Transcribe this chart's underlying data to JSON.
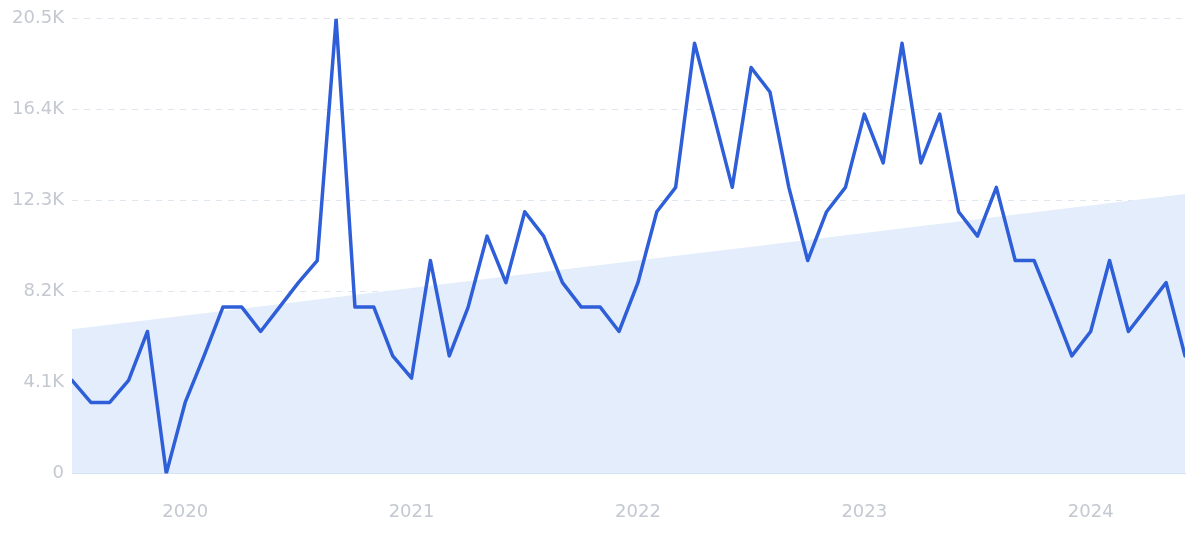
{
  "chart_data": {
    "type": "line",
    "xlim": [
      "2019-07",
      "2024-06"
    ],
    "xticks": [
      {
        "value": "2020-01",
        "label": "2020"
      },
      {
        "value": "2021-01",
        "label": "2021"
      },
      {
        "value": "2022-01",
        "label": "2022"
      },
      {
        "value": "2023-01",
        "label": "2023"
      },
      {
        "value": "2024-01",
        "label": "2024"
      }
    ],
    "ylim": [
      0,
      20500
    ],
    "yticks": [
      {
        "value": 0,
        "label": "0"
      },
      {
        "value": 4100,
        "label": "4.1K"
      },
      {
        "value": 8200,
        "label": "8.2K"
      },
      {
        "value": 12300,
        "label": "12.3K"
      },
      {
        "value": 16400,
        "label": "16.4K"
      },
      {
        "value": 20500,
        "label": "20.5K"
      }
    ],
    "grid": "y",
    "legend": false,
    "marker": "none",
    "series": [
      {
        "type": "area",
        "color": "#e3edfb",
        "x": [
          "2019-07",
          "2024-06"
        ],
        "values": [
          6500,
          12600
        ]
      },
      {
        "type": "line",
        "color": "#2f5fd8",
        "x": [
          "2019-07",
          "2019-08",
          "2019-09",
          "2019-10",
          "2019-11",
          "2019-12",
          "2020-01",
          "2020-02",
          "2020-03",
          "2020-04",
          "2020-05",
          "2020-06",
          "2020-07",
          "2020-08",
          "2020-09",
          "2020-10",
          "2020-11",
          "2020-12",
          "2021-01",
          "2021-02",
          "2021-03",
          "2021-04",
          "2021-05",
          "2021-06",
          "2021-07",
          "2021-08",
          "2021-09",
          "2021-10",
          "2021-11",
          "2021-12",
          "2022-01",
          "2022-02",
          "2022-03",
          "2022-04",
          "2022-05",
          "2022-06",
          "2022-07",
          "2022-08",
          "2022-09",
          "2022-10",
          "2022-11",
          "2022-12",
          "2023-01",
          "2023-02",
          "2023-03",
          "2023-04",
          "2023-05",
          "2023-06",
          "2023-07",
          "2023-08",
          "2023-09",
          "2023-10",
          "2023-11",
          "2023-12",
          "2024-01",
          "2024-02",
          "2024-03",
          "2024-04",
          "2024-05",
          "2024-06"
        ],
        "values": [
          4200,
          3200,
          3200,
          4200,
          6400,
          0,
          3200,
          5300,
          7500,
          7500,
          6400,
          7500,
          8600,
          9600,
          20500,
          7500,
          7500,
          5300,
          4300,
          9600,
          5300,
          7500,
          10700,
          8600,
          11800,
          10700,
          8600,
          7500,
          7500,
          6400,
          8600,
          11800,
          12900,
          19400,
          16200,
          12900,
          18300,
          17200,
          12900,
          9600,
          11800,
          12900,
          16200,
          14000,
          19400,
          14000,
          16200,
          11800,
          10700,
          12900,
          9600,
          9600,
          7500,
          5300,
          6400,
          9600,
          6400,
          7500,
          8600,
          5300
        ]
      }
    ]
  }
}
